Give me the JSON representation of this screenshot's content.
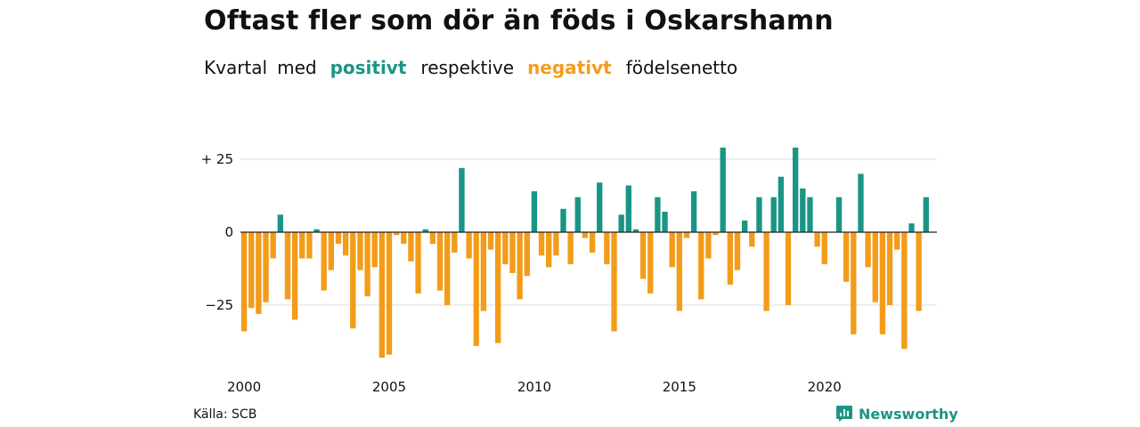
{
  "header": {
    "title": "Oftast fler som dör än föds i Oskarshamn",
    "subtitle_parts": [
      "Kvartal",
      "med",
      "positivt",
      "respektive",
      "negativt",
      "födelsenetto"
    ]
  },
  "footer": {
    "source": "Källa: SCB",
    "brand": "Newsworthy",
    "brand_icon": "bar-chart-speech-bubble-icon"
  },
  "colors": {
    "positive": "#1a9585",
    "negative": "#f39c1a",
    "grid": "#dddddd",
    "zero_line": "#222222"
  },
  "chart_data": {
    "type": "bar",
    "title": "Oftast fler som dör än föds i Oskarshamn",
    "xlabel": "",
    "ylabel": "",
    "x_start": "2000 Q1",
    "x_end": "2023 Q4",
    "x_ticks": [
      2000,
      2005,
      2010,
      2015,
      2020
    ],
    "x_tick_labels": [
      "2000",
      "2005",
      "2010",
      "2015",
      "2020"
    ],
    "y_ticks": [
      25,
      0,
      -25
    ],
    "y_tick_labels": [
      "+ 25",
      "0",
      "−25"
    ],
    "ylim": [
      -45,
      30
    ],
    "grid": true,
    "series": [
      {
        "name": "födelsenetto",
        "values": [
          -34,
          -26,
          -28,
          -24,
          -9,
          6,
          -23,
          -30,
          -9,
          -9,
          1,
          -20,
          -13,
          -4,
          -8,
          -33,
          -13,
          -22,
          -12,
          -43,
          -42,
          -1,
          -4,
          -10,
          -21,
          1,
          -4,
          -20,
          -25,
          -7,
          22,
          -9,
          -39,
          -27,
          -6,
          -38,
          -11,
          -14,
          -23,
          -15,
          14,
          -8,
          -12,
          -8,
          8,
          -11,
          12,
          -2,
          -7,
          17,
          -11,
          -34,
          6,
          16,
          1,
          -16,
          -21,
          12,
          7,
          -12,
          -27,
          -2,
          14,
          -23,
          -9,
          -1,
          29,
          -18,
          -13,
          4,
          -5,
          12,
          -27,
          12,
          19,
          -25,
          29,
          15,
          12,
          -5,
          -11,
          0,
          12,
          -17,
          -35,
          20,
          -12,
          -24,
          -35,
          -25,
          -6,
          -40,
          3,
          -27,
          12,
          0
        ]
      }
    ]
  }
}
